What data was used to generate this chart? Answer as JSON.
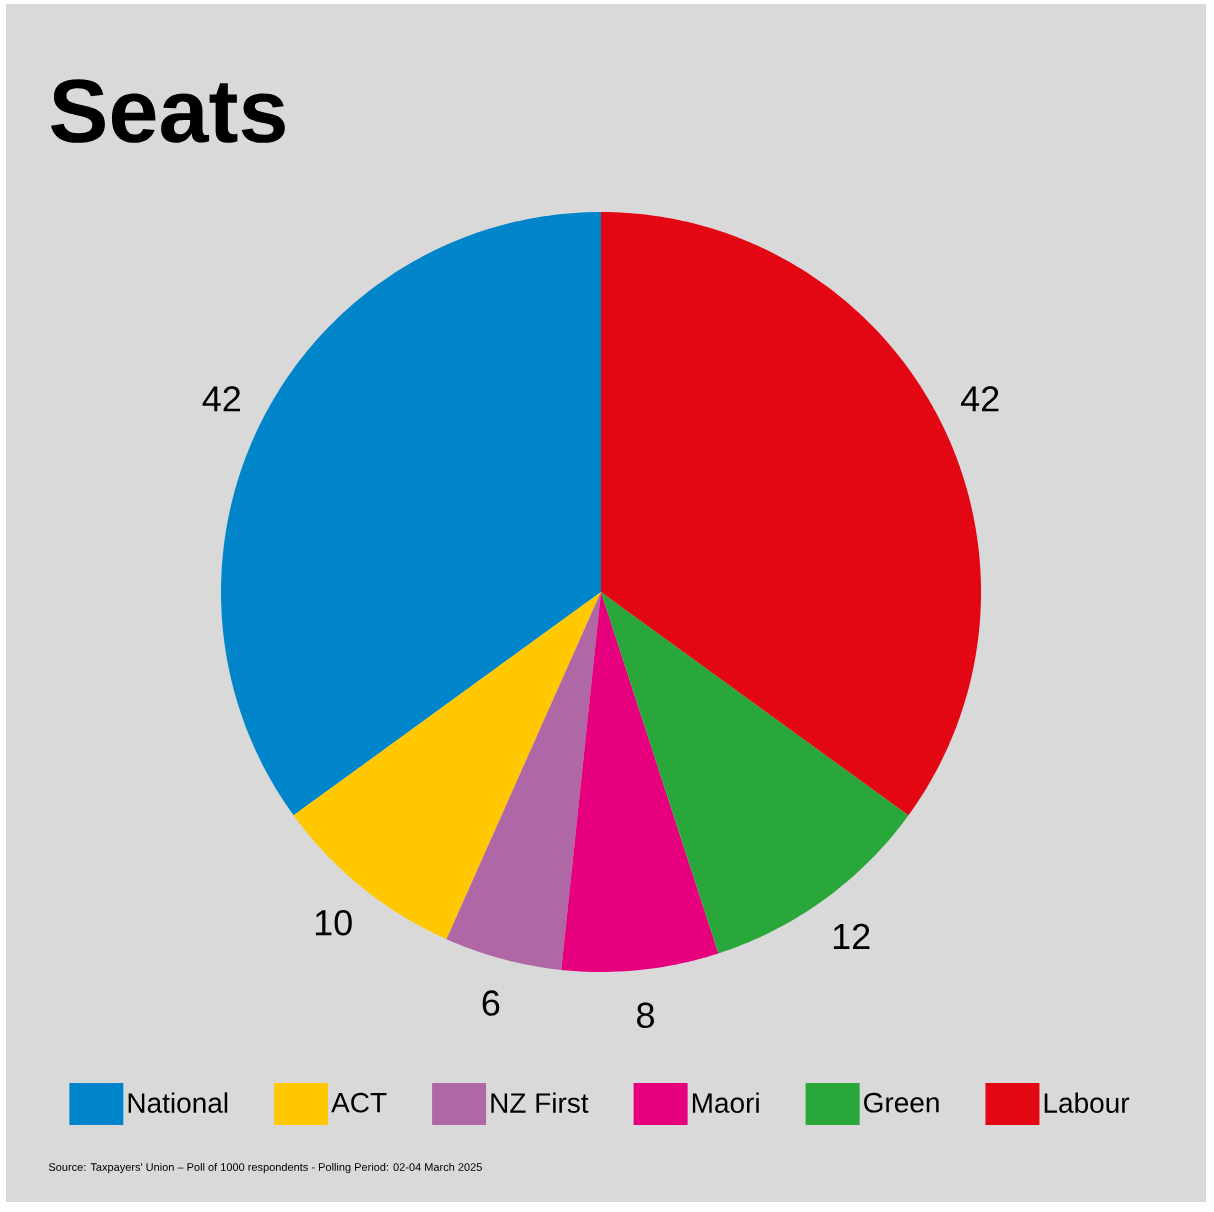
{
  "chart_data": {
    "type": "pie",
    "title": "Seats",
    "categories": [
      "National",
      "ACT",
      "NZ First",
      "Maori",
      "Green",
      "Labour"
    ],
    "values": [
      42,
      10,
      6,
      8,
      12,
      42
    ],
    "colors": [
      "#0085CA",
      "#FFC800",
      "#AF67A5",
      "#E6007E",
      "#29A73B",
      "#E30613"
    ],
    "data_labels": true,
    "legend": "bottom",
    "annotations": [
      "Source: Taxpayers' Union – Poll of 1000 respondents - Polling Period: 02-04 March 2025"
    ]
  }
}
